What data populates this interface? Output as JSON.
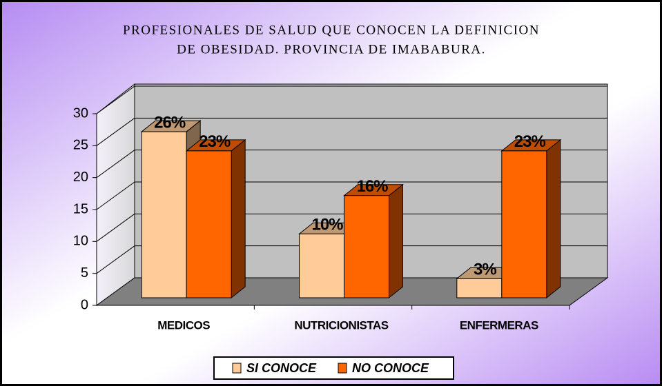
{
  "chart_data": {
    "type": "bar3d",
    "title": [
      "PROFESIONALES DE SALUD QUE CONOCEN LA DEFINICION",
      "DE OBESIDAD. PROVINCIA DE IMABABURA."
    ],
    "categories": [
      "MEDICOS",
      "NUTRICIONISTAS",
      "ENFERMERAS"
    ],
    "series": [
      {
        "name": "SI CONOCE",
        "color": "#ffcc99",
        "values": [
          26,
          10,
          3
        ],
        "value_labels": [
          "26%",
          "10%",
          "3%"
        ]
      },
      {
        "name": "NO CONOCE",
        "color": "#ff6600",
        "values": [
          23,
          16,
          23
        ],
        "value_labels": [
          "23%",
          "16%",
          "23%"
        ]
      }
    ],
    "ylim": [
      0,
      30
    ],
    "yticks": [
      0,
      5,
      10,
      15,
      20,
      25,
      30
    ],
    "grid": true,
    "legend": "bottom"
  }
}
